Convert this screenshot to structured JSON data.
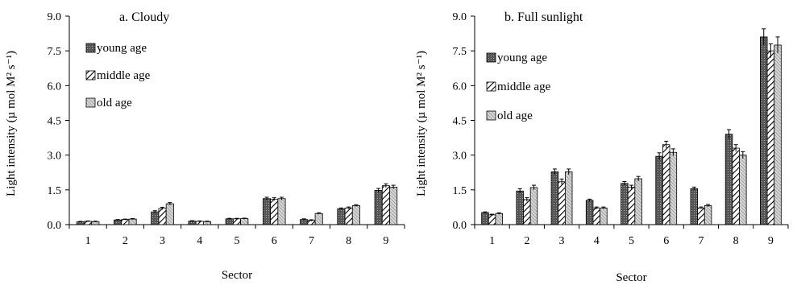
{
  "chart_data": [
    {
      "type": "bar",
      "title": "a.   Cloudy",
      "xlabel": "Sector",
      "ylabel": "Light intensity (µ mol M² s⁻¹)",
      "ylim": [
        0,
        9
      ],
      "yticks": [
        "0.0",
        "1.5",
        "3.0",
        "4.5",
        "6.0",
        "7.5",
        "9.0"
      ],
      "categories": [
        "1",
        "2",
        "3",
        "4",
        "5",
        "6",
        "7",
        "8",
        "9"
      ],
      "series": [
        {
          "name": "young age",
          "values": [
            0.12,
            0.2,
            0.55,
            0.15,
            0.25,
            1.12,
            0.22,
            0.68,
            1.48
          ],
          "errors": [
            0.02,
            0.02,
            0.05,
            0.02,
            0.02,
            0.06,
            0.03,
            0.04,
            0.08
          ]
        },
        {
          "name": "middle age",
          "values": [
            0.14,
            0.22,
            0.7,
            0.14,
            0.25,
            1.1,
            0.18,
            0.72,
            1.68
          ],
          "errors": [
            0.02,
            0.02,
            0.05,
            0.02,
            0.02,
            0.06,
            0.03,
            0.04,
            0.08
          ]
        },
        {
          "name": "old age",
          "values": [
            0.13,
            0.24,
            0.9,
            0.13,
            0.26,
            1.12,
            0.48,
            0.82,
            1.62
          ],
          "errors": [
            0.02,
            0.02,
            0.05,
            0.02,
            0.02,
            0.06,
            0.03,
            0.04,
            0.08
          ]
        }
      ],
      "legend_position": "top-left"
    },
    {
      "type": "bar",
      "title": "b.  Full sunlight",
      "xlabel": "Sector",
      "ylabel": "Light intensity (µ mol M² s⁻¹)",
      "ylim": [
        0,
        9
      ],
      "yticks": [
        "0.0",
        "1.5",
        "3.0",
        "4.5",
        "6.0",
        "7.5",
        "9.0"
      ],
      "categories": [
        "1",
        "2",
        "3",
        "4",
        "5",
        "6",
        "7",
        "8",
        "9"
      ],
      "series": [
        {
          "name": "young age",
          "values": [
            0.52,
            1.45,
            2.28,
            1.05,
            1.78,
            2.95,
            1.55,
            3.9,
            8.1
          ],
          "errors": [
            0.03,
            0.1,
            0.12,
            0.05,
            0.08,
            0.15,
            0.07,
            0.2,
            0.35
          ]
        },
        {
          "name": "middle age",
          "values": [
            0.42,
            1.08,
            1.85,
            0.72,
            1.62,
            3.45,
            0.72,
            3.3,
            7.5
          ],
          "errors": [
            0.03,
            0.08,
            0.12,
            0.04,
            0.08,
            0.15,
            0.04,
            0.15,
            0.3
          ]
        },
        {
          "name": "old age",
          "values": [
            0.48,
            1.6,
            2.28,
            0.72,
            1.98,
            3.12,
            0.82,
            3.0,
            7.75
          ],
          "errors": [
            0.03,
            0.1,
            0.12,
            0.04,
            0.1,
            0.15,
            0.05,
            0.15,
            0.35
          ]
        }
      ],
      "legend_position": "top-left"
    }
  ]
}
